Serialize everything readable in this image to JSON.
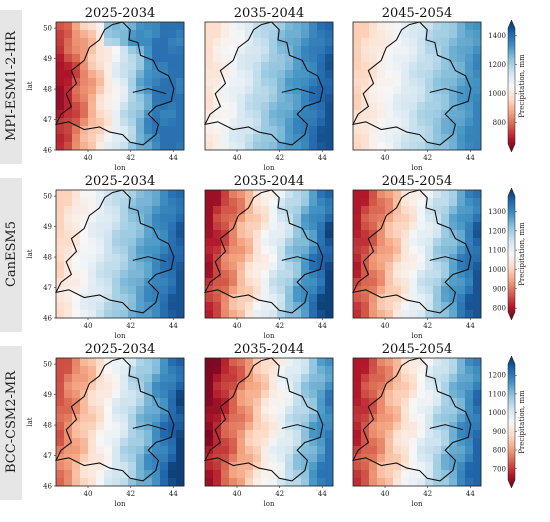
{
  "figure": {
    "colorbar_label": "Precipitation, mm",
    "colormap": [
      "#67001f",
      "#b2182b",
      "#d6604d",
      "#f4a582",
      "#fddbc7",
      "#f7f7f7",
      "#d1e5f0",
      "#92c5de",
      "#4393c3",
      "#2166ac",
      "#053061"
    ]
  },
  "chart_data": [
    {
      "type": "heatmap",
      "model": "MPI-ESM1-2-HR",
      "period": "2025-2034",
      "xlabel": "lon",
      "ylabel": "lat",
      "x_ticks": [
        "40",
        "42",
        "44"
      ],
      "y_ticks": [
        "46",
        "47",
        "48",
        "49",
        "50"
      ],
      "xlim": [
        38.5,
        44.5
      ],
      "ylim": [
        46,
        50.2
      ],
      "colorbar_ticks": [
        800,
        1000,
        1200,
        1400
      ],
      "clim": [
        650,
        1450
      ],
      "pattern": "west-wet",
      "wet": 1400,
      "dry": 750,
      "wet_extent": 0.55
    },
    {
      "type": "heatmap",
      "model": "MPI-ESM1-2-HR",
      "period": "2035-2044",
      "xlabel": "lon",
      "ylabel": "",
      "x_ticks": [
        "40",
        "42",
        "44"
      ],
      "y_ticks": [],
      "xlim": [
        38.5,
        44.5
      ],
      "ylim": [
        46,
        50.2
      ],
      "clim": [
        650,
        1450
      ],
      "pattern": "gradient",
      "wet": 1120,
      "dry": 700
    },
    {
      "type": "heatmap",
      "model": "MPI-ESM1-2-HR",
      "period": "2045-2054",
      "xlabel": "lon",
      "ylabel": "",
      "x_ticks": [
        "40",
        "42",
        "44"
      ],
      "y_ticks": [],
      "xlim": [
        38.5,
        44.5
      ],
      "ylim": [
        46,
        50.2
      ],
      "clim": [
        650,
        1450
      ],
      "pattern": "gradient",
      "wet": 1150,
      "dry": 780
    },
    {
      "type": "heatmap",
      "model": "CanESM5",
      "period": "2025-2034",
      "xlabel": "lon",
      "ylabel": "lat",
      "x_ticks": [
        "40",
        "42",
        "44"
      ],
      "y_ticks": [
        "46",
        "47",
        "48",
        "49",
        "50"
      ],
      "xlim": [
        38.5,
        44.5
      ],
      "ylim": [
        46,
        50.2
      ],
      "colorbar_ticks": [
        800,
        900,
        1000,
        1100,
        1200,
        1300
      ],
      "clim": [
        780,
        1380
      ],
      "pattern": "gradient",
      "wet": 1150,
      "dry": 820
    },
    {
      "type": "heatmap",
      "model": "CanESM5",
      "period": "2035-2044",
      "xlabel": "lon",
      "ylabel": "",
      "x_ticks": [
        "40",
        "42",
        "44"
      ],
      "y_ticks": [],
      "xlim": [
        38.5,
        44.5
      ],
      "ylim": [
        46,
        50.2
      ],
      "clim": [
        780,
        1380
      ],
      "pattern": "gradient",
      "wet": 1340,
      "dry": 800
    },
    {
      "type": "heatmap",
      "model": "CanESM5",
      "period": "2045-2054",
      "xlabel": "lon",
      "ylabel": "",
      "x_ticks": [
        "40",
        "42",
        "44"
      ],
      "y_ticks": [],
      "xlim": [
        38.5,
        44.5
      ],
      "ylim": [
        46,
        50.2
      ],
      "clim": [
        780,
        1380
      ],
      "pattern": "gradient",
      "wet": 1320,
      "dry": 820
    },
    {
      "type": "heatmap",
      "model": "BCC-CSM2-MR",
      "period": "2025-2034",
      "xlabel": "lon",
      "ylabel": "lat",
      "x_ticks": [
        "40",
        "42",
        "44"
      ],
      "y_ticks": [
        "46",
        "47",
        "48",
        "49",
        "50"
      ],
      "xlim": [
        38.5,
        44.5
      ],
      "ylim": [
        46,
        50.2
      ],
      "colorbar_ticks": [
        700,
        800,
        900,
        1000,
        1100,
        1200
      ],
      "clim": [
        640,
        1260
      ],
      "pattern": "gradient",
      "wet": 1150,
      "dry": 660
    },
    {
      "type": "heatmap",
      "model": "BCC-CSM2-MR",
      "period": "2035-2044",
      "xlabel": "lon",
      "ylabel": "",
      "x_ticks": [
        "40",
        "42",
        "44"
      ],
      "y_ticks": [],
      "xlim": [
        38.5,
        44.5
      ],
      "ylim": [
        46,
        50.2
      ],
      "clim": [
        640,
        1260
      ],
      "pattern": "gradient",
      "wet": 1240,
      "dry": 720
    },
    {
      "type": "heatmap",
      "model": "BCC-CSM2-MR",
      "period": "2045-2054",
      "xlabel": "lon",
      "ylabel": "",
      "x_ticks": [
        "40",
        "42",
        "44"
      ],
      "y_ticks": [],
      "xlim": [
        38.5,
        44.5
      ],
      "ylim": [
        46,
        50.2
      ],
      "clim": [
        640,
        1260
      ],
      "pattern": "gradient",
      "wet": 1200,
      "dry": 700
    }
  ]
}
